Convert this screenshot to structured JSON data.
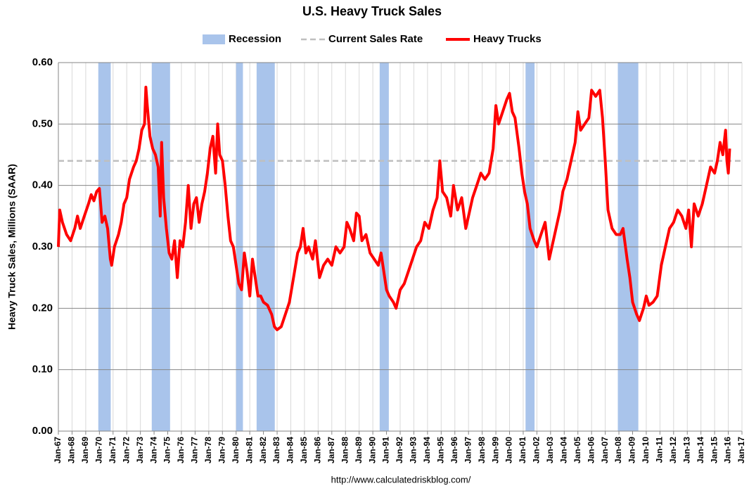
{
  "chart_data": {
    "type": "line",
    "title": "U.S. Heavy Truck Sales",
    "ylabel": "Heavy Truck Sales, Millions (SAAR)",
    "source": "http://www.calculatedriskblog.com/",
    "recession": {
      "name": "Recession",
      "color": "#a9c4eb",
      "periods": [
        [
          1969.92,
          1970.83
        ],
        [
          1973.83,
          1975.17
        ],
        [
          1980.0,
          1980.5
        ],
        [
          1981.5,
          1982.83
        ],
        [
          1990.5,
          1991.17
        ],
        [
          2001.17,
          2001.83
        ],
        [
          2007.92,
          2009.42
        ]
      ]
    },
    "reference_line": {
      "name": "Current Sales Rate",
      "value": 0.44,
      "color": "#bfbfbf"
    },
    "x": [
      1967.0,
      1967.1,
      1967.3,
      1967.6,
      1967.9,
      1968.2,
      1968.4,
      1968.6,
      1968.9,
      1969.2,
      1969.4,
      1969.6,
      1969.8,
      1970.0,
      1970.2,
      1970.4,
      1970.6,
      1970.8,
      1970.9,
      1971.1,
      1971.4,
      1971.6,
      1971.8,
      1972.0,
      1972.2,
      1972.5,
      1972.7,
      1972.9,
      1973.1,
      1973.3,
      1973.4,
      1973.5,
      1973.7,
      1973.9,
      1974.1,
      1974.3,
      1974.45,
      1974.55,
      1974.7,
      1974.9,
      1975.1,
      1975.3,
      1975.5,
      1975.7,
      1975.9,
      1976.1,
      1976.3,
      1976.5,
      1976.7,
      1976.9,
      1977.1,
      1977.3,
      1977.5,
      1977.7,
      1977.9,
      1978.1,
      1978.3,
      1978.5,
      1978.65,
      1978.8,
      1979.0,
      1979.2,
      1979.4,
      1979.6,
      1979.8,
      1980.0,
      1980.2,
      1980.4,
      1980.6,
      1980.8,
      1981.0,
      1981.2,
      1981.4,
      1981.6,
      1981.8,
      1982.0,
      1982.3,
      1982.6,
      1982.8,
      1983.0,
      1983.3,
      1983.6,
      1983.9,
      1984.2,
      1984.5,
      1984.7,
      1984.9,
      1985.1,
      1985.3,
      1985.6,
      1985.8,
      1986.1,
      1986.4,
      1986.7,
      1987.0,
      1987.3,
      1987.6,
      1987.9,
      1988.1,
      1988.3,
      1988.6,
      1988.8,
      1989.0,
      1989.2,
      1989.5,
      1989.8,
      1990.1,
      1990.4,
      1990.6,
      1990.8,
      1991.0,
      1991.2,
      1991.5,
      1991.7,
      1992.0,
      1992.3,
      1992.6,
      1992.9,
      1993.2,
      1993.5,
      1993.8,
      1994.1,
      1994.4,
      1994.7,
      1994.9,
      1995.1,
      1995.4,
      1995.7,
      1995.9,
      1996.2,
      1996.5,
      1996.8,
      1997.0,
      1997.3,
      1997.6,
      1997.9,
      1998.2,
      1998.5,
      1998.8,
      1999.0,
      1999.2,
      1999.5,
      1999.8,
      2000.0,
      2000.2,
      2000.4,
      2000.7,
      2000.9,
      2001.1,
      2001.3,
      2001.5,
      2001.8,
      2002.0,
      2002.3,
      2002.6,
      2002.9,
      2003.1,
      2003.4,
      2003.7,
      2003.9,
      2004.2,
      2004.5,
      2004.8,
      2005.0,
      2005.2,
      2005.5,
      2005.8,
      2006.0,
      2006.3,
      2006.6,
      2006.8,
      2007.0,
      2007.2,
      2007.5,
      2007.8,
      2008.1,
      2008.3,
      2008.6,
      2008.8,
      2009.0,
      2009.3,
      2009.5,
      2009.8,
      2010.0,
      2010.2,
      2010.5,
      2010.8,
      2011.1,
      2011.4,
      2011.7,
      2012.0,
      2012.3,
      2012.6,
      2012.9,
      2013.1,
      2013.3,
      2013.5,
      2013.8,
      2014.1,
      2014.4,
      2014.7,
      2015.0,
      2015.2,
      2015.4,
      2015.6,
      2015.8,
      2015.9,
      2016.0,
      2016.1
    ],
    "series": [
      {
        "name": "Heavy Trucks",
        "color": "#ff0000",
        "values": [
          0.3,
          0.36,
          0.34,
          0.32,
          0.31,
          0.33,
          0.35,
          0.33,
          0.35,
          0.37,
          0.385,
          0.375,
          0.39,
          0.395,
          0.34,
          0.35,
          0.33,
          0.28,
          0.27,
          0.3,
          0.32,
          0.34,
          0.37,
          0.38,
          0.41,
          0.43,
          0.44,
          0.46,
          0.49,
          0.5,
          0.56,
          0.53,
          0.48,
          0.46,
          0.45,
          0.43,
          0.35,
          0.47,
          0.38,
          0.33,
          0.29,
          0.28,
          0.31,
          0.25,
          0.31,
          0.3,
          0.34,
          0.4,
          0.33,
          0.37,
          0.38,
          0.34,
          0.37,
          0.39,
          0.42,
          0.46,
          0.48,
          0.42,
          0.5,
          0.45,
          0.44,
          0.4,
          0.35,
          0.31,
          0.3,
          0.27,
          0.24,
          0.23,
          0.29,
          0.26,
          0.22,
          0.28,
          0.25,
          0.22,
          0.22,
          0.21,
          0.205,
          0.19,
          0.17,
          0.165,
          0.17,
          0.19,
          0.21,
          0.25,
          0.29,
          0.3,
          0.33,
          0.29,
          0.3,
          0.28,
          0.31,
          0.25,
          0.27,
          0.28,
          0.27,
          0.3,
          0.29,
          0.3,
          0.34,
          0.33,
          0.31,
          0.355,
          0.35,
          0.31,
          0.32,
          0.29,
          0.28,
          0.27,
          0.29,
          0.26,
          0.23,
          0.22,
          0.21,
          0.2,
          0.23,
          0.24,
          0.26,
          0.28,
          0.3,
          0.31,
          0.34,
          0.33,
          0.36,
          0.38,
          0.44,
          0.39,
          0.38,
          0.35,
          0.4,
          0.36,
          0.38,
          0.33,
          0.35,
          0.38,
          0.4,
          0.42,
          0.41,
          0.42,
          0.46,
          0.53,
          0.5,
          0.52,
          0.54,
          0.55,
          0.52,
          0.51,
          0.46,
          0.42,
          0.39,
          0.37,
          0.33,
          0.31,
          0.3,
          0.32,
          0.34,
          0.28,
          0.3,
          0.33,
          0.36,
          0.39,
          0.41,
          0.44,
          0.47,
          0.52,
          0.49,
          0.5,
          0.51,
          0.555,
          0.545,
          0.555,
          0.51,
          0.44,
          0.36,
          0.33,
          0.32,
          0.32,
          0.33,
          0.28,
          0.25,
          0.21,
          0.19,
          0.18,
          0.2,
          0.22,
          0.205,
          0.21,
          0.22,
          0.27,
          0.3,
          0.33,
          0.34,
          0.36,
          0.35,
          0.33,
          0.36,
          0.3,
          0.37,
          0.35,
          0.37,
          0.4,
          0.43,
          0.42,
          0.44,
          0.47,
          0.45,
          0.49,
          0.44,
          0.42,
          0.46
        ]
      }
    ],
    "xlim": [
      1967,
      2017
    ],
    "xticks": [
      {
        "value": 1967,
        "label": "Jan-67"
      },
      {
        "value": 1968,
        "label": "Jan-68"
      },
      {
        "value": 1969,
        "label": "Jan-69"
      },
      {
        "value": 1970,
        "label": "Jan-70"
      },
      {
        "value": 1971,
        "label": "Jan-71"
      },
      {
        "value": 1972,
        "label": "Jan-72"
      },
      {
        "value": 1973,
        "label": "Jan-73"
      },
      {
        "value": 1974,
        "label": "Jan-74"
      },
      {
        "value": 1975,
        "label": "Jan-75"
      },
      {
        "value": 1976,
        "label": "Jan-76"
      },
      {
        "value": 1977,
        "label": "Jan-77"
      },
      {
        "value": 1978,
        "label": "Jan-78"
      },
      {
        "value": 1979,
        "label": "Jan-79"
      },
      {
        "value": 1980,
        "label": "Jan-80"
      },
      {
        "value": 1981,
        "label": "Jan-81"
      },
      {
        "value": 1982,
        "label": "Jan-82"
      },
      {
        "value": 1983,
        "label": "Jan-83"
      },
      {
        "value": 1984,
        "label": "Jan-84"
      },
      {
        "value": 1985,
        "label": "Jan-85"
      },
      {
        "value": 1986,
        "label": "Jan-86"
      },
      {
        "value": 1987,
        "label": "Jan-87"
      },
      {
        "value": 1988,
        "label": "Jan-88"
      },
      {
        "value": 1989,
        "label": "Jan-89"
      },
      {
        "value": 1990,
        "label": "Jan-90"
      },
      {
        "value": 1991,
        "label": "Jan-91"
      },
      {
        "value": 1992,
        "label": "Jan-92"
      },
      {
        "value": 1993,
        "label": "Jan-93"
      },
      {
        "value": 1994,
        "label": "Jan-94"
      },
      {
        "value": 1995,
        "label": "Jan-95"
      },
      {
        "value": 1996,
        "label": "Jan-96"
      },
      {
        "value": 1997,
        "label": "Jan-97"
      },
      {
        "value": 1998,
        "label": "Jan-98"
      },
      {
        "value": 1999,
        "label": "Jan-99"
      },
      {
        "value": 2000,
        "label": "Jan-00"
      },
      {
        "value": 2001,
        "label": "Jan-01"
      },
      {
        "value": 2002,
        "label": "Jan-02"
      },
      {
        "value": 2003,
        "label": "Jan-03"
      },
      {
        "value": 2004,
        "label": "Jan-04"
      },
      {
        "value": 2005,
        "label": "Jan-05"
      },
      {
        "value": 2006,
        "label": "Jan-06"
      },
      {
        "value": 2007,
        "label": "Jan-07"
      },
      {
        "value": 2008,
        "label": "Jan-08"
      },
      {
        "value": 2009,
        "label": "Jan-09"
      },
      {
        "value": 2010,
        "label": "Jan-10"
      },
      {
        "value": 2011,
        "label": "Jan-11"
      },
      {
        "value": 2012,
        "label": "Jan-12"
      },
      {
        "value": 2013,
        "label": "Jan-13"
      },
      {
        "value": 2014,
        "label": "Jan-14"
      },
      {
        "value": 2015,
        "label": "Jan-15"
      },
      {
        "value": 2016,
        "label": "Jan-16"
      },
      {
        "value": 2017,
        "label": "Jan-17"
      }
    ],
    "ylim": [
      0,
      0.6
    ],
    "yticks": [
      {
        "value": 0,
        "label": "0.00"
      },
      {
        "value": 0.1,
        "label": "0.10"
      },
      {
        "value": 0.2,
        "label": "0.20"
      },
      {
        "value": 0.3,
        "label": "0.30"
      },
      {
        "value": 0.4,
        "label": "0.40"
      },
      {
        "value": 0.5,
        "label": "0.50"
      },
      {
        "value": 0.6,
        "label": "0.60"
      }
    ],
    "grid": true,
    "legend": "top"
  }
}
